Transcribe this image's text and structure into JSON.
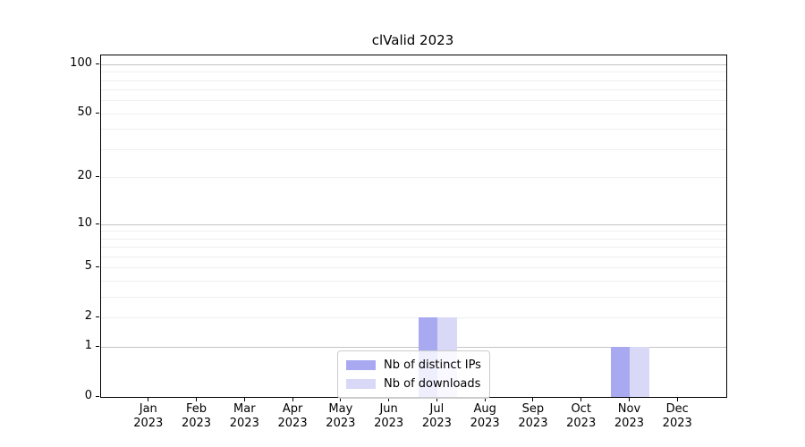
{
  "chart_data": {
    "type": "bar",
    "title": "clValid 2023",
    "categories": [
      "Jan\n2023",
      "Feb\n2023",
      "Mar\n2023",
      "Apr\n2023",
      "May\n2023",
      "Jun\n2023",
      "Jul\n2023",
      "Aug\n2023",
      "Sep\n2023",
      "Oct\n2023",
      "Nov\n2023",
      "Dec\n2023"
    ],
    "series": [
      {
        "name": "Nb of distinct IPs",
        "color": "#a9a9f2",
        "values": [
          0,
          0,
          0,
          0,
          0,
          0,
          2,
          0,
          0,
          0,
          1,
          0
        ]
      },
      {
        "name": "Nb of downloads",
        "color": "#d9d9f7",
        "values": [
          0,
          0,
          0,
          0,
          0,
          0,
          2,
          0,
          0,
          0,
          1,
          0
        ]
      }
    ],
    "xlabel": "",
    "ylabel": "",
    "yscale": "log1p",
    "ylim": [
      0,
      113
    ],
    "yticks": [
      0,
      1,
      2,
      5,
      10,
      20,
      50,
      100
    ],
    "grid_major": [
      1,
      10,
      100
    ],
    "grid_minor": [
      2,
      3,
      4,
      5,
      6,
      7,
      8,
      9,
      20,
      30,
      40,
      50,
      60,
      70,
      80,
      90
    ],
    "grid_color_major": "#c4c4c4",
    "grid_color_minor": "#efefef",
    "grid_on": true,
    "legend_position": "lower center",
    "colors": {
      "axis": "#000000",
      "text": "#000000",
      "background": "#ffffff",
      "legend_border": "#cccccc"
    }
  }
}
